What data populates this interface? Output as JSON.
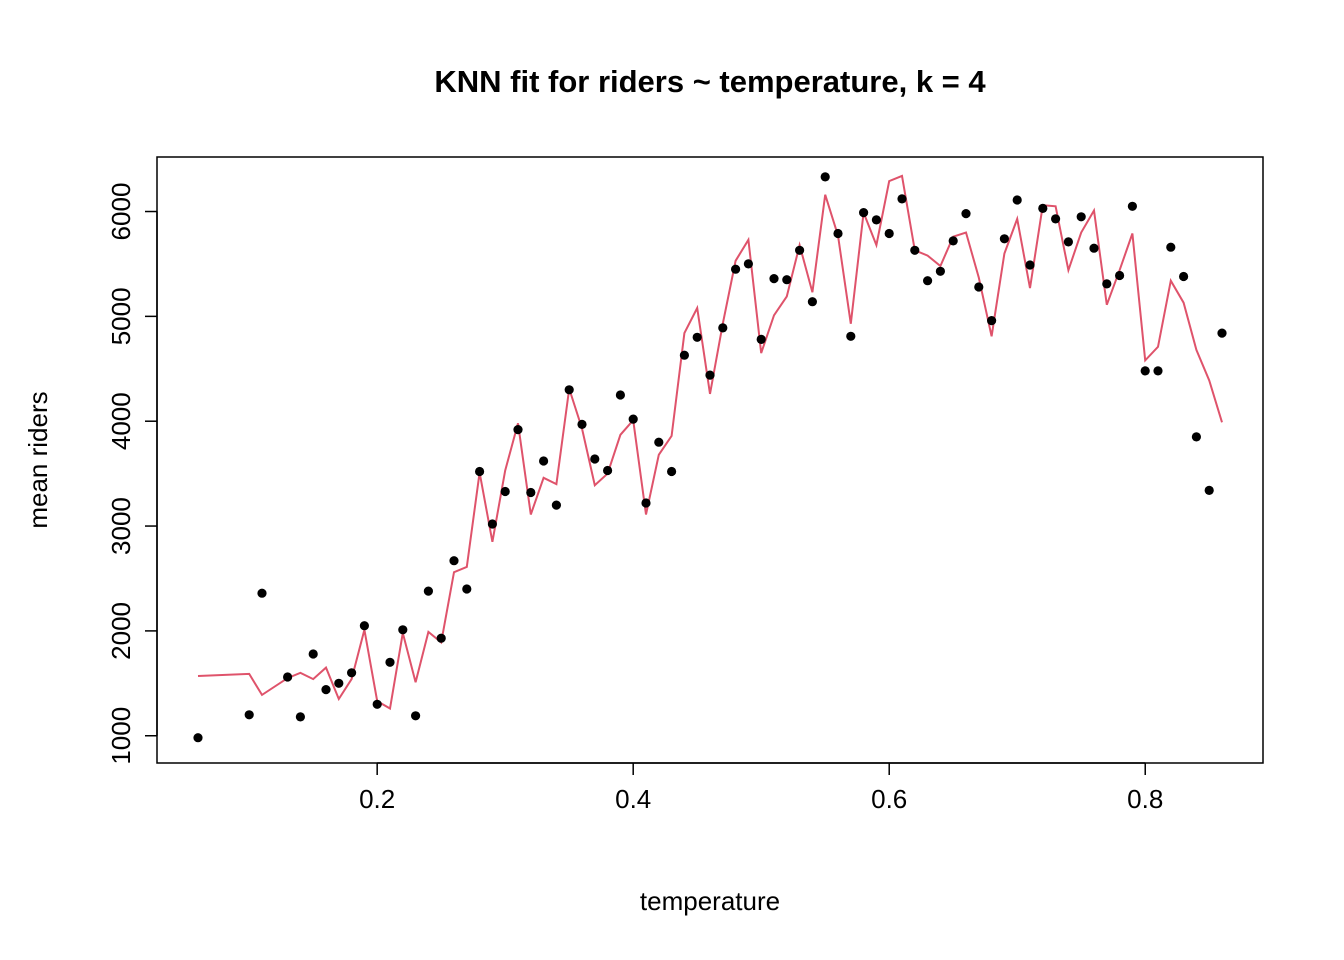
{
  "chart_data": {
    "type": "scatter",
    "title": "KNN fit for riders ~  temperature, k = 4",
    "xlabel": "temperature",
    "ylabel": "mean riders",
    "xlim": [
      0.028,
      0.892
    ],
    "ylim": [
      740,
      6520
    ],
    "x_ticks": [
      0.2,
      0.4,
      0.6,
      0.8
    ],
    "x_tick_labels": [
      "0.2",
      "0.4",
      "0.6",
      "0.8"
    ],
    "y_ticks": [
      1000,
      2000,
      3000,
      4000,
      5000,
      6000
    ],
    "y_tick_labels": [
      "1000",
      "2000",
      "3000",
      "4000",
      "5000",
      "6000"
    ],
    "grid": false,
    "legend": "none",
    "colors": {
      "points": "#000000",
      "fit_line": "#DF536B",
      "frame": "#000000"
    },
    "series": [
      {
        "type": "scatter",
        "x": [
          0.06,
          0.1,
          0.11,
          0.13,
          0.14,
          0.15,
          0.16,
          0.17,
          0.18,
          0.19,
          0.2,
          0.21,
          0.22,
          0.23,
          0.24,
          0.25,
          0.26,
          0.27,
          0.28,
          0.29,
          0.3,
          0.31,
          0.32,
          0.33,
          0.34,
          0.35,
          0.36,
          0.37,
          0.38,
          0.39,
          0.4,
          0.41,
          0.42,
          0.43,
          0.44,
          0.45,
          0.46,
          0.47,
          0.48,
          0.49,
          0.5,
          0.51,
          0.52,
          0.53,
          0.54,
          0.55,
          0.56,
          0.57,
          0.58,
          0.59,
          0.6,
          0.61,
          0.62,
          0.63,
          0.64,
          0.65,
          0.66,
          0.67,
          0.68,
          0.69,
          0.7,
          0.71,
          0.72,
          0.73,
          0.74,
          0.75,
          0.76,
          0.77,
          0.78,
          0.79,
          0.8,
          0.81,
          0.82,
          0.83,
          0.84,
          0.85,
          0.86
        ],
        "y": [
          981,
          1200,
          2360,
          1560,
          1180,
          1780,
          1440,
          1500,
          1600,
          2050,
          1300,
          1700,
          2010,
          1190,
          2380,
          1930,
          2670,
          2400,
          3520,
          3020,
          3330,
          3920,
          3320,
          3620,
          3200,
          4300,
          3970,
          3640,
          3530,
          4250,
          4020,
          3220,
          3800,
          3520,
          4630,
          4800,
          4440,
          4890,
          5450,
          5500,
          4780,
          5360,
          5350,
          5630,
          5140,
          6330,
          5790,
          4810,
          5990,
          5920,
          5790,
          6120,
          5630,
          5340,
          5430,
          5720,
          5980,
          5280,
          4960,
          5740,
          6110,
          5490,
          6030,
          5930,
          5710,
          5950,
          5650,
          5310,
          5390,
          6050,
          4480,
          4480,
          5660,
          5380,
          3850,
          3340,
          4840
        ]
      },
      {
        "type": "line",
        "x": [
          0.06,
          0.1,
          0.11,
          0.13,
          0.14,
          0.15,
          0.16,
          0.17,
          0.18,
          0.19,
          0.2,
          0.21,
          0.22,
          0.23,
          0.24,
          0.25,
          0.26,
          0.27,
          0.28,
          0.29,
          0.3,
          0.31,
          0.32,
          0.33,
          0.34,
          0.35,
          0.36,
          0.37,
          0.38,
          0.39,
          0.4,
          0.41,
          0.42,
          0.43,
          0.44,
          0.45,
          0.46,
          0.47,
          0.48,
          0.49,
          0.5,
          0.51,
          0.52,
          0.53,
          0.54,
          0.55,
          0.56,
          0.57,
          0.58,
          0.59,
          0.6,
          0.61,
          0.62,
          0.63,
          0.64,
          0.65,
          0.66,
          0.67,
          0.68,
          0.69,
          0.7,
          0.71,
          0.72,
          0.73,
          0.74,
          0.75,
          0.76,
          0.77,
          0.78,
          0.79,
          0.8,
          0.81,
          0.82,
          0.83,
          0.84,
          0.85,
          0.86
        ],
        "y": [
          1570,
          1590,
          1390,
          1550,
          1600,
          1540,
          1650,
          1350,
          1540,
          2010,
          1330,
          1260,
          1980,
          1510,
          1990,
          1890,
          2560,
          2610,
          3510,
          2850,
          3530,
          3980,
          3110,
          3460,
          3400,
          4310,
          3930,
          3390,
          3500,
          3870,
          4010,
          3110,
          3680,
          3860,
          4840,
          5080,
          4260,
          4930,
          5530,
          5730,
          4650,
          5010,
          5190,
          5680,
          5230,
          6160,
          5770,
          4930,
          5990,
          5680,
          6290,
          6340,
          5630,
          5580,
          5480,
          5760,
          5800,
          5370,
          4810,
          5600,
          5930,
          5270,
          6060,
          6050,
          5440,
          5800,
          6010,
          5110,
          5440,
          5790,
          4580,
          4710,
          5340,
          5130,
          4680,
          4390,
          3990
        ]
      }
    ]
  }
}
